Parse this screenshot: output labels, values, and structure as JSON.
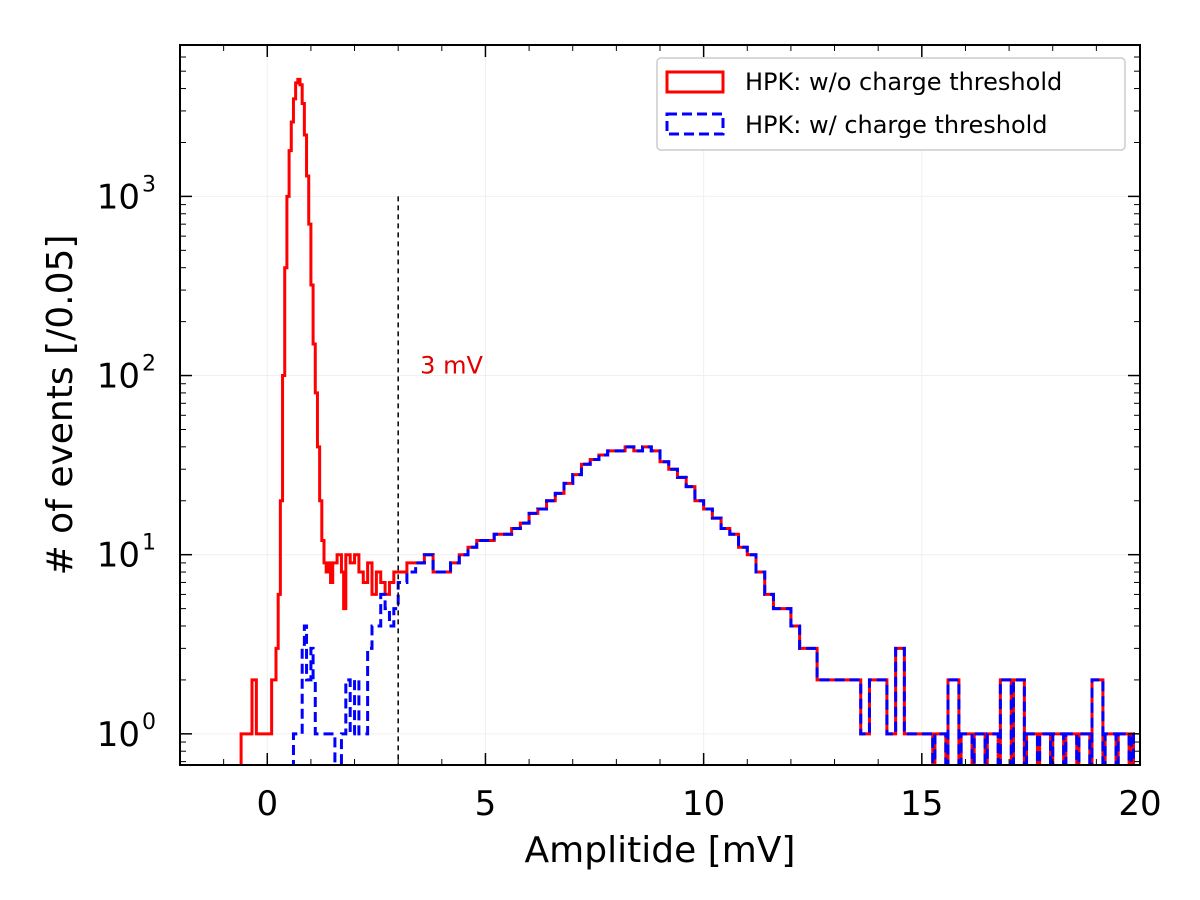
{
  "chart_data": {
    "type": "step-histogram",
    "title": "",
    "xlabel": "Amplitide [mV]",
    "ylabel": "# of events [/0.05]",
    "xlim": [
      -2,
      20
    ],
    "ylim": [
      0.67,
      7000
    ],
    "yscale": "log",
    "bin_width": 0.05,
    "grid": true,
    "legend_position": "top-right",
    "x_ticks": [
      {
        "value": 0,
        "label": "0"
      },
      {
        "value": 5,
        "label": "5"
      },
      {
        "value": 10,
        "label": "10"
      },
      {
        "value": 15,
        "label": "15"
      },
      {
        "value": 20,
        "label": "20"
      }
    ],
    "y_ticks": [
      {
        "value": 1,
        "base": "10",
        "exp": "0"
      },
      {
        "value": 10,
        "base": "10",
        "exp": "1"
      },
      {
        "value": 100,
        "base": "10",
        "exp": "2"
      },
      {
        "value": 1000,
        "base": "10",
        "exp": "3"
      }
    ],
    "threshold": {
      "x": 3,
      "y_top": 1000,
      "label": "3 mV",
      "label_color": "#e00000"
    },
    "series": [
      {
        "name": "HPK: w/o charge threshold",
        "color": "#ff0000",
        "style": "solid",
        "x": [
          -0.6,
          -0.4,
          -0.35,
          -0.25,
          -0.2,
          -0.15,
          -0.1,
          -0.05,
          0.0,
          0.05,
          0.1,
          0.2,
          0.25,
          0.3,
          0.35,
          0.4,
          0.45,
          0.5,
          0.55,
          0.6,
          0.65,
          0.7,
          0.75,
          0.8,
          0.85,
          0.9,
          0.95,
          1.0,
          1.05,
          1.1,
          1.15,
          1.2,
          1.25,
          1.3,
          1.35,
          1.4,
          1.45,
          1.5,
          1.6,
          1.7,
          1.75,
          1.8,
          1.9,
          2.0,
          2.1,
          2.2,
          2.3,
          2.4,
          2.5,
          2.6,
          2.7,
          2.8,
          2.9,
          3.0,
          3.2,
          3.4,
          3.6,
          3.8,
          4.0,
          4.2,
          4.4,
          4.6,
          4.8,
          5.0,
          5.2,
          5.4,
          5.6,
          5.8,
          6.0,
          6.2,
          6.4,
          6.6,
          6.8,
          7.0,
          7.2,
          7.4,
          7.6,
          7.8,
          8.0,
          8.2,
          8.4,
          8.6,
          8.8,
          9.0,
          9.2,
          9.4,
          9.6,
          9.8,
          10.0,
          10.2,
          10.4,
          10.6,
          10.8,
          11.0,
          11.2,
          11.4,
          11.6,
          11.8,
          12.0,
          12.2,
          12.4,
          12.6,
          12.8,
          13.0,
          13.2,
          13.4,
          13.6,
          13.8,
          14.0,
          14.2,
          14.4,
          14.6,
          14.8,
          15.0,
          15.3,
          15.6,
          15.9,
          16.2,
          16.5,
          16.8,
          17.1,
          17.4,
          17.7,
          18.0,
          18.3,
          18.6,
          18.9,
          19.2,
          19.5,
          19.8
        ],
        "y": [
          1,
          1,
          2,
          1,
          1,
          1,
          1,
          1,
          1,
          1,
          2,
          3,
          6,
          20,
          100,
          400,
          1000,
          1800,
          2600,
          3500,
          4300,
          4500,
          4200,
          3300,
          2200,
          1300,
          700,
          320,
          150,
          80,
          40,
          20,
          12,
          9,
          8,
          9,
          7,
          9,
          10,
          8,
          5,
          10,
          9,
          10,
          8,
          7,
          9,
          6,
          8,
          7,
          6,
          7,
          8,
          8,
          9,
          9,
          10,
          8,
          8,
          9,
          10,
          11,
          12,
          12,
          13,
          13,
          14,
          15,
          17,
          18,
          20,
          22,
          25,
          28,
          32,
          34,
          36,
          38,
          38,
          40,
          38,
          40,
          38,
          33,
          30,
          27,
          24,
          20,
          18,
          16,
          14,
          13,
          11,
          10,
          8,
          6,
          5,
          5,
          4,
          3,
          3,
          2,
          2,
          2,
          2,
          2,
          1,
          2,
          2,
          1,
          3,
          1,
          1,
          1,
          1,
          2,
          1,
          1,
          1,
          2,
          2,
          1,
          1,
          1,
          1,
          1,
          2,
          1,
          1,
          1
        ]
      },
      {
        "name": "HPK: w/ charge threshold",
        "color": "#0000ff",
        "style": "dashed",
        "x": [
          0.6,
          0.8,
          0.85,
          0.9,
          1.0,
          1.05,
          1.1,
          1.2,
          1.3,
          1.7,
          1.8,
          1.9,
          2.0,
          2.1,
          2.2,
          2.3,
          2.4,
          2.5,
          2.6,
          2.7,
          2.8,
          2.9,
          3.0,
          3.2,
          3.4,
          3.6,
          3.8,
          4.0,
          4.2,
          4.4,
          4.6,
          4.8,
          5.0,
          5.2,
          5.4,
          5.6,
          5.8,
          6.0,
          6.2,
          6.4,
          6.6,
          6.8,
          7.0,
          7.2,
          7.4,
          7.6,
          7.8,
          8.0,
          8.2,
          8.4,
          8.6,
          8.8,
          9.0,
          9.2,
          9.4,
          9.6,
          9.8,
          10.0,
          10.2,
          10.4,
          10.6,
          10.8,
          11.0,
          11.2,
          11.4,
          11.6,
          11.8,
          12.0,
          12.2,
          12.4,
          12.6,
          12.8,
          13.0,
          13.2,
          13.4,
          13.6,
          13.8,
          14.0,
          14.2,
          14.4,
          14.6,
          14.8,
          15.0,
          15.3,
          15.6,
          15.9,
          16.2,
          16.5,
          16.8,
          17.1,
          17.4,
          17.7,
          18.0,
          18.3,
          18.6,
          18.9,
          19.2,
          19.5,
          19.8
        ],
        "y": [
          1,
          3,
          4,
          2,
          3,
          2,
          1,
          1,
          1,
          1,
          2,
          1,
          2,
          1,
          1,
          3,
          4,
          4,
          6,
          5,
          4,
          5,
          7,
          8,
          9,
          10,
          8,
          8,
          9,
          10,
          11,
          12,
          12,
          13,
          13,
          14,
          15,
          17,
          18,
          20,
          22,
          25,
          28,
          32,
          34,
          36,
          38,
          38,
          40,
          38,
          40,
          38,
          33,
          30,
          27,
          24,
          20,
          18,
          16,
          14,
          13,
          11,
          10,
          8,
          6,
          5,
          5,
          4,
          3,
          3,
          2,
          2,
          2,
          2,
          2,
          1,
          2,
          2,
          1,
          3,
          1,
          1,
          1,
          1,
          2,
          1,
          1,
          1,
          2,
          2,
          1,
          1,
          1,
          1,
          1,
          2,
          1,
          1,
          1
        ]
      }
    ]
  }
}
